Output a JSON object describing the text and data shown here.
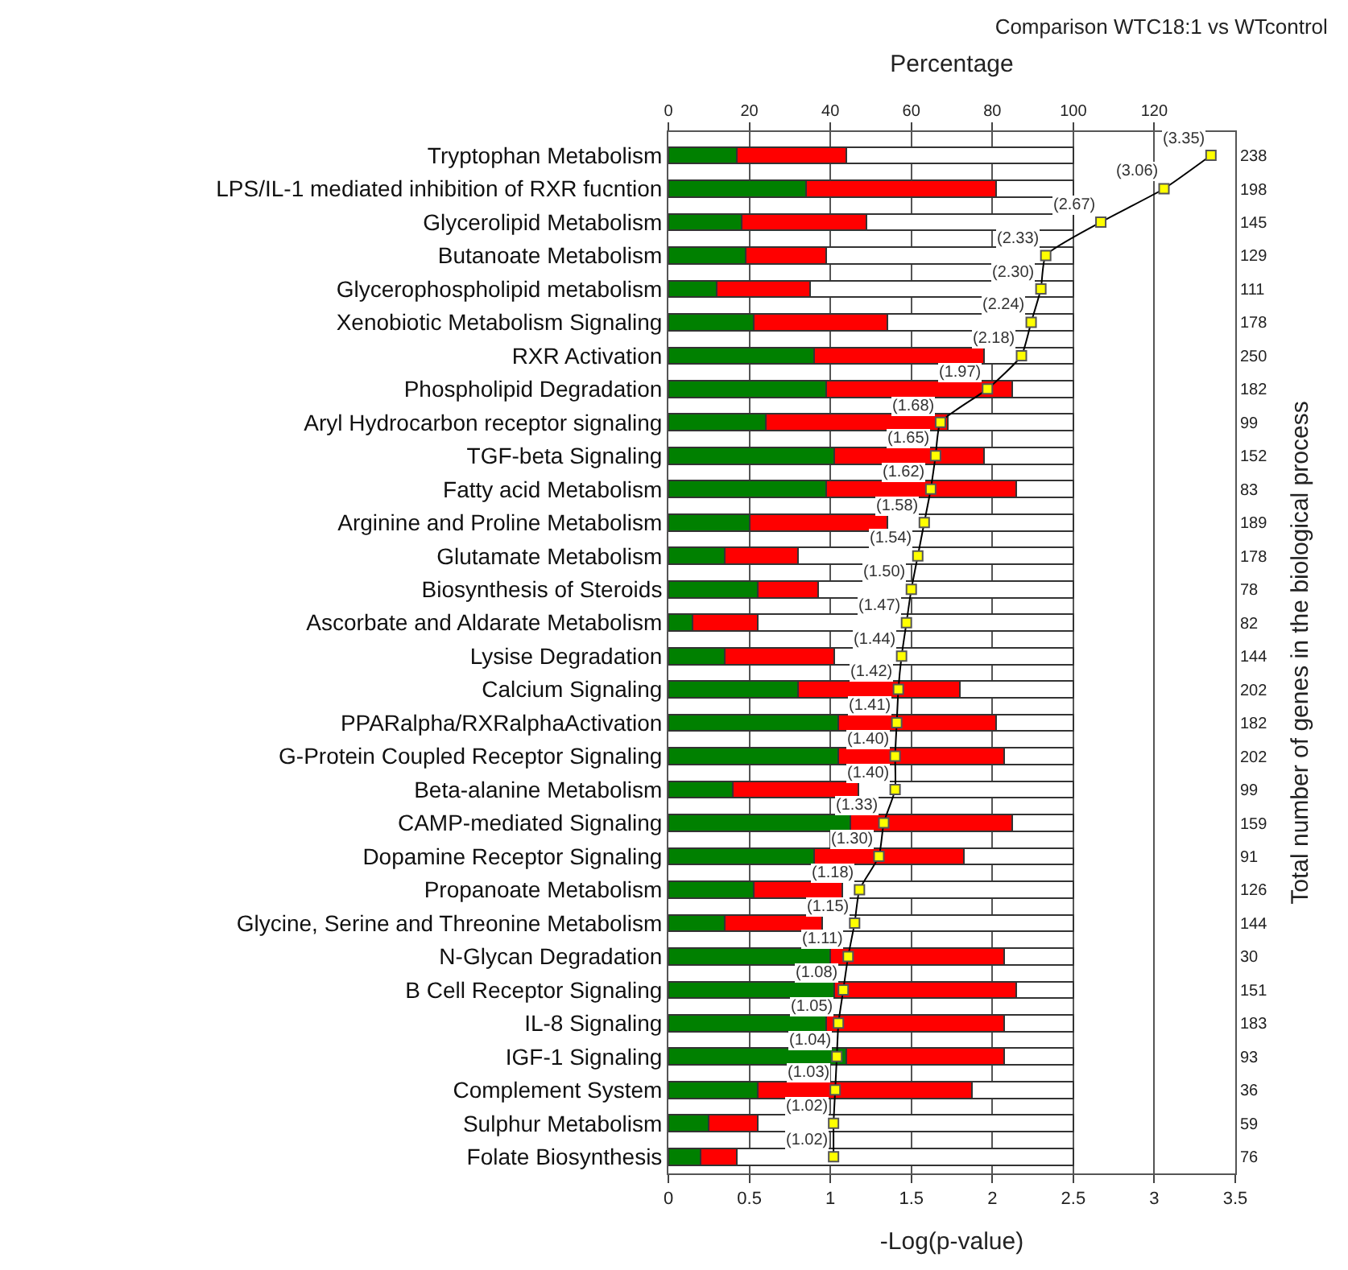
{
  "chart_data": {
    "type": "bar",
    "orientation": "horizontal",
    "stacked": true,
    "title": "Comparison WTC18:1 vs WTcontrol",
    "xlabel": "Percentage",
    "x2label": "-Log(p-value)",
    "y2label": "Total number of genes in the biological process",
    "categories": [
      "Tryptophan Metabolism",
      "LPS/IL-1 mediated inhibition of RXR fucntion",
      "Glycerolipid Metabolism",
      "Butanoate Metabolism",
      "Glycerophospholipid metabolism",
      "Xenobiotic Metabolism Signaling",
      "RXR Activation",
      "Phospholipid Degradation",
      "Aryl Hydrocarbon receptor signaling",
      "TGF-beta Signaling",
      "Fatty acid Metabolism",
      "Arginine and Proline Metabolism",
      "Glutamate Metabolism",
      "Biosynthesis of Steroids",
      "Ascorbate and Aldarate Metabolism",
      "Lysise Degradation",
      "Calcium Signaling",
      "PPARalpha/RXRalphaActivation",
      "G-Protein Coupled Receptor Signaling",
      "Beta-alanine Metabolism",
      "CAMP-mediated Signaling",
      "Dopamine Receptor Signaling",
      "Propanoate Metabolism",
      "Glycine, Serine and Threonine Metabolism",
      "N-Glycan Degradation",
      "B Cell Receptor Signaling",
      "IL-8 Signaling",
      "IGF-1 Signaling",
      "Complement System",
      "Sulphur Metabolism",
      "Folate Biosynthesis"
    ],
    "y2_categories": [
      "238",
      "198",
      "145",
      "129",
      "111",
      "178",
      "250",
      "182",
      "99",
      "152",
      "83",
      "189",
      "178",
      "78",
      "82",
      "144",
      "202",
      "182",
      "202",
      "99",
      "159",
      "91",
      "126",
      "144",
      "30",
      "151",
      "183",
      "93",
      "36",
      "59",
      "76"
    ],
    "xlim": [
      0,
      140
    ],
    "xticks": [
      0,
      20,
      40,
      60,
      80,
      100,
      120
    ],
    "x2lim": [
      0,
      3.5
    ],
    "x2ticks": [
      0,
      0.5,
      1,
      1.5,
      2,
      2.5,
      3,
      3.5
    ],
    "grid": "x",
    "series": [
      {
        "color": "#008000",
        "values": [
          17,
          34,
          18,
          19,
          12,
          21,
          36,
          39,
          24,
          41,
          39,
          20,
          14,
          22,
          6,
          14,
          32,
          42,
          42,
          16,
          45,
          36,
          21,
          14,
          40,
          41,
          39,
          44,
          22,
          10,
          8
        ]
      },
      {
        "color": "#ff0000",
        "values": [
          27,
          47,
          31,
          20,
          23,
          33,
          42,
          46,
          45,
          37,
          47,
          34,
          18,
          15,
          16,
          27,
          40,
          39,
          41,
          31,
          40,
          37,
          22,
          24,
          43,
          45,
          44,
          39,
          53,
          12,
          9
        ]
      },
      {
        "color": "#ffffff",
        "values": [
          56,
          19,
          51,
          61,
          65,
          46,
          22,
          15,
          31,
          22,
          14,
          46,
          68,
          63,
          78,
          59,
          28,
          19,
          17,
          53,
          15,
          27,
          57,
          62,
          17,
          14,
          17,
          17,
          25,
          78,
          83
        ]
      },
      {
        "type": "line",
        "axis": "x2",
        "color": "#000000",
        "marker": "square",
        "values": [
          3.35,
          3.06,
          2.67,
          2.33,
          2.3,
          2.24,
          2.18,
          1.97,
          1.68,
          1.65,
          1.62,
          1.58,
          1.54,
          1.5,
          1.47,
          1.44,
          1.42,
          1.41,
          1.4,
          1.4,
          1.33,
          1.3,
          1.18,
          1.15,
          1.11,
          1.08,
          1.05,
          1.04,
          1.03,
          1.02,
          1.02
        ],
        "value_labels": [
          "(3.35)",
          "(3.06)",
          "(2.67)",
          "(2.33)",
          "(2.30)",
          "(2.24)",
          "(2.18)",
          "(1.97)",
          "(1.68)",
          "(1.65)",
          "(1.62)",
          "(1.58)",
          "(1.54)",
          "(1.50)",
          "(1.47)",
          "(1.44)",
          "(1.42)",
          "(1.41)",
          "(1.40)",
          "(1.40)",
          "(1.33)",
          "(1.30)",
          "(1.18)",
          "(1.15)",
          "(1.11)",
          "(1.08)",
          "(1.05)",
          "(1.04)",
          "(1.03)",
          "(1.02)",
          "(1.02)"
        ]
      }
    ]
  }
}
